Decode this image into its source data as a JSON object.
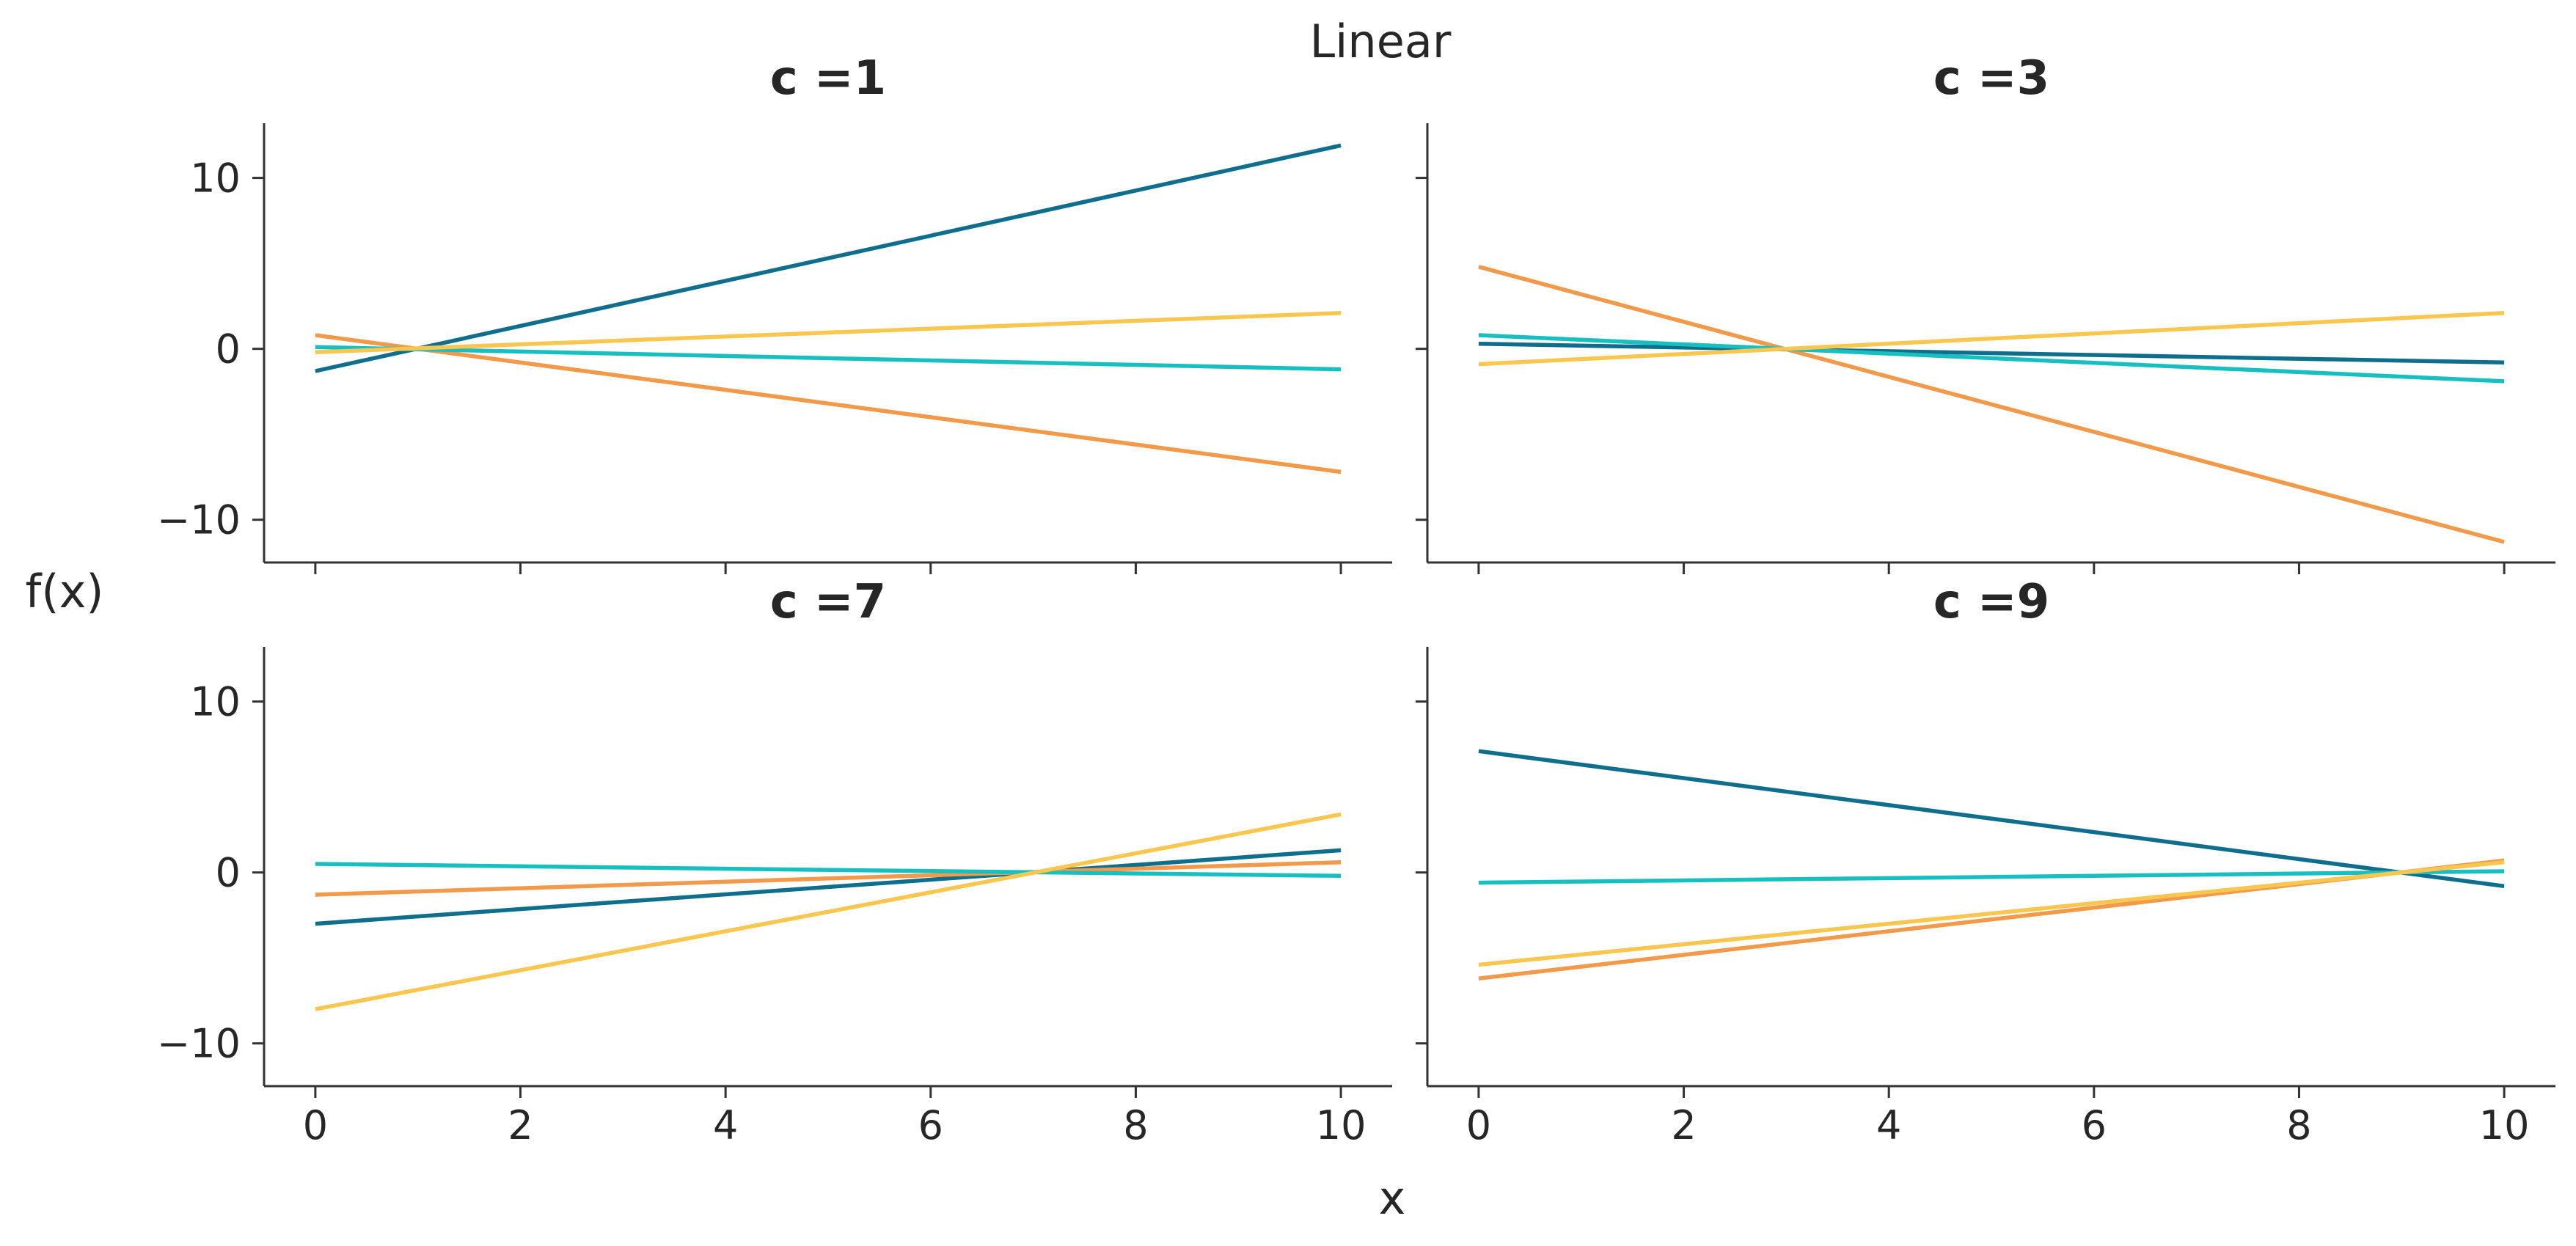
{
  "chart_data": {
    "type": "line",
    "title": "Linear",
    "xlabel": "x",
    "ylabel": "f(x)",
    "xlim": [
      -0.5,
      10.5
    ],
    "ylim": [
      -12.5,
      13.2
    ],
    "x_ticks": [
      0,
      2,
      4,
      6,
      8,
      10
    ],
    "y_ticks": [
      10,
      0,
      -10
    ],
    "y_tick_labels": [
      "10",
      "0",
      "−10"
    ],
    "grid": false,
    "colors": [
      "#0f6e8c",
      "#f2994a",
      "#18bfc1",
      "#f9c74f"
    ],
    "panels": [
      {
        "title": "c =1",
        "series": [
          {
            "color": "#0f6e8c",
            "x": [
              0,
              10
            ],
            "y": [
              -1.3,
              11.9
            ]
          },
          {
            "color": "#f2994a",
            "x": [
              0,
              10
            ],
            "y": [
              0.8,
              -7.2
            ]
          },
          {
            "color": "#18bfc1",
            "x": [
              0,
              10
            ],
            "y": [
              0.1,
              -1.2
            ]
          },
          {
            "color": "#f9c74f",
            "x": [
              0,
              10
            ],
            "y": [
              -0.2,
              2.1
            ]
          }
        ]
      },
      {
        "title": "c =3",
        "series": [
          {
            "color": "#0f6e8c",
            "x": [
              0,
              10
            ],
            "y": [
              0.3,
              -0.8
            ]
          },
          {
            "color": "#f2994a",
            "x": [
              0,
              10
            ],
            "y": [
              4.8,
              -11.3
            ]
          },
          {
            "color": "#18bfc1",
            "x": [
              0,
              10
            ],
            "y": [
              0.8,
              -1.9
            ]
          },
          {
            "color": "#f9c74f",
            "x": [
              0,
              10
            ],
            "y": [
              -0.9,
              2.1
            ]
          }
        ]
      },
      {
        "title": "c =7",
        "series": [
          {
            "color": "#0f6e8c",
            "x": [
              0,
              10
            ],
            "y": [
              -3.0,
              1.3
            ]
          },
          {
            "color": "#f2994a",
            "x": [
              0,
              10
            ],
            "y": [
              -1.3,
              0.6
            ]
          },
          {
            "color": "#18bfc1",
            "x": [
              0,
              10
            ],
            "y": [
              0.5,
              -0.2
            ]
          },
          {
            "color": "#f9c74f",
            "x": [
              0,
              10
            ],
            "y": [
              -8.0,
              3.4
            ]
          }
        ]
      },
      {
        "title": "c =9",
        "series": [
          {
            "color": "#0f6e8c",
            "x": [
              0,
              10
            ],
            "y": [
              7.1,
              -0.8
            ]
          },
          {
            "color": "#f2994a",
            "x": [
              0,
              10
            ],
            "y": [
              -6.2,
              0.7
            ]
          },
          {
            "color": "#18bfc1",
            "x": [
              0,
              10
            ],
            "y": [
              -0.6,
              0.07
            ]
          },
          {
            "color": "#f9c74f",
            "x": [
              0,
              10
            ],
            "y": [
              -5.4,
              0.6
            ]
          }
        ]
      }
    ]
  }
}
